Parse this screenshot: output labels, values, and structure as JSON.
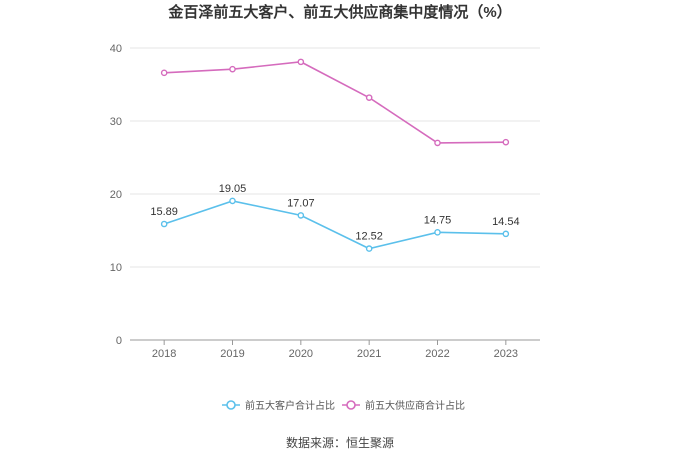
{
  "chart_data": {
    "type": "line",
    "title": "金百泽前五大客户、前五大供应商集中度情况（%）",
    "xlabel": "",
    "ylabel": "",
    "categories": [
      "2018",
      "2019",
      "2020",
      "2021",
      "2022",
      "2023"
    ],
    "ylim": [
      0,
      40
    ],
    "yticks": [
      0,
      10,
      20,
      30,
      40
    ],
    "grid": true,
    "legend_position": "bottom",
    "series": [
      {
        "name": "前五大客户合计占比",
        "color": "#5bc0eb",
        "values": [
          15.89,
          19.05,
          17.07,
          12.52,
          14.75,
          14.54
        ],
        "labels": [
          "15.89",
          "19.05",
          "17.07",
          "12.52",
          "14.75",
          "14.54"
        ],
        "show_labels": true
      },
      {
        "name": "前五大供应商合计占比",
        "color": "#d56bbd",
        "values": [
          36.6,
          37.1,
          38.1,
          33.2,
          27.0,
          27.1
        ],
        "show_labels": false
      }
    ]
  },
  "source": "数据来源：恒生聚源"
}
